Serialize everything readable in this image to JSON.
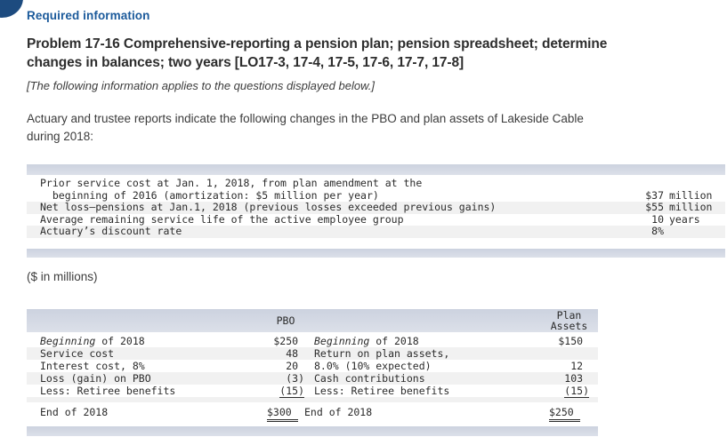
{
  "page": {
    "required_label": "Required information",
    "title_line1": "Problem 17-16 Comprehensive-reporting a pension plan; pension spreadsheet; determine",
    "title_line2": "changes in balances; two years [LO17-3, 17-4, 17-5, 17-6, 17-7, 17-8]",
    "note": "[The following information applies to the questions displayed below.]",
    "intro_line1": "Actuary and trustee reports indicate the following changes in the PBO and plan assets of Lakeside Cable",
    "intro_line2": "during 2018:",
    "millions_label": "($ in millions)"
  },
  "colors": {
    "heading_blue": "#1b5a9b",
    "corner_navy": "#1d4b7f",
    "table_bar": "#d3d8e2",
    "row_stripe": "#f1f1f1",
    "text_dark": "#2d2d2d"
  },
  "facts_table": {
    "rows": [
      {
        "label": "Prior service cost at Jan. 1, 2018, from plan amendment at the",
        "amount": "",
        "unit": ""
      },
      {
        "label": "  beginning of 2016 (amortization: $5 million per year)",
        "amount": "$37",
        "unit": "million"
      },
      {
        "label": "Net loss–pensions at Jan.1, 2018 (previous losses exceeded previous gains)",
        "amount": "$55",
        "unit": "million"
      },
      {
        "label": "Average remaining service life of the active employee group",
        "amount": "10",
        "unit": "years"
      },
      {
        "label": "Actuary’s discount rate",
        "amount": "8%",
        "unit": ""
      }
    ]
  },
  "spreadsheet_table": {
    "pbo_header": "PBO",
    "assets_header_line1": "Plan",
    "assets_header_line2": "Assets",
    "rows": [
      {
        "pbo_label_italic": "Beginning",
        "pbo_label": " of 2018",
        "pbo_value": "$250 ",
        "asset_label_italic": "Beginning",
        "asset_label": " of 2018",
        "asset_value": "$150 "
      },
      {
        "pbo_label": "Service cost",
        "pbo_value": "48 ",
        "asset_label": "Return on plan assets,",
        "asset_value": ""
      },
      {
        "pbo_label": "Interest cost, 8%",
        "pbo_value": "20 ",
        "asset_label": "8.0% (10% expected)",
        "asset_value": "12 "
      },
      {
        "pbo_label": "Loss (gain) on PBO",
        "pbo_value": "(3)",
        "asset_label": "Cash contributions",
        "asset_value": "103 "
      },
      {
        "pbo_label": "Less: Retiree benefits",
        "pbo_value": "(15)",
        "asset_label": "Less: Retiree benefits",
        "asset_value": "(15)"
      }
    ],
    "total_row": {
      "pbo_label": "End of 2018",
      "pbo_value": "$300 ",
      "asset_label": "End of 2018",
      "asset_value": "$250 "
    }
  }
}
